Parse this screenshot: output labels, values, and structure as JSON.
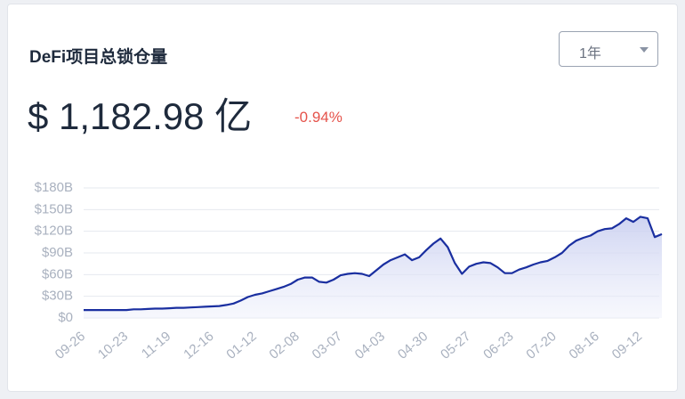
{
  "header": {
    "title": "DeFi项目总锁仓量",
    "value": "$ 1,182.98 亿",
    "change": "-0.94%",
    "period": "1年"
  },
  "chart_data": {
    "type": "area",
    "color": "#1a2fa0",
    "grid": true,
    "categories": [
      "09-26",
      null,
      null,
      null,
      null,
      null,
      "10-23",
      null,
      null,
      null,
      null,
      null,
      "11-19",
      null,
      null,
      null,
      null,
      null,
      "12-16",
      null,
      null,
      null,
      null,
      null,
      "01-12",
      null,
      null,
      null,
      null,
      null,
      "02-08",
      null,
      null,
      null,
      null,
      null,
      "03-07",
      null,
      null,
      null,
      null,
      null,
      "04-03",
      null,
      null,
      null,
      null,
      null,
      "04-30",
      null,
      null,
      null,
      null,
      null,
      "05-27",
      null,
      null,
      null,
      null,
      null,
      "06-23",
      null,
      null,
      null,
      null,
      null,
      "07-20",
      null,
      null,
      null,
      null,
      null,
      "08-16",
      null,
      null,
      null,
      null,
      null,
      "09-12",
      null,
      null,
      null
    ],
    "values": [
      11,
      11,
      11,
      11,
      11,
      11,
      11,
      12,
      12,
      12.5,
      13,
      13,
      13.5,
      14,
      14,
      14.5,
      15,
      15.5,
      16,
      16.5,
      18,
      20,
      24,
      29,
      32,
      34,
      37,
      40,
      43,
      47,
      53,
      56,
      56,
      50,
      49,
      53,
      59,
      61,
      62,
      61,
      58,
      66,
      74,
      80,
      84,
      88,
      80,
      84,
      94,
      103,
      110,
      98,
      76,
      61,
      71,
      75,
      77,
      76,
      70,
      62,
      62,
      67,
      70,
      74,
      77,
      79,
      84,
      90,
      100,
      107,
      111,
      114,
      120,
      123,
      124,
      130,
      138,
      133,
      140,
      138,
      112,
      116
    ],
    "ylim": [
      0,
      180
    ],
    "yticks": [
      {
        "value": 0,
        "label": "$0"
      },
      {
        "value": 30,
        "label": "$30B"
      },
      {
        "value": 60,
        "label": "$60B"
      },
      {
        "value": 90,
        "label": "$90B"
      },
      {
        "value": 120,
        "label": "$120B"
      },
      {
        "value": 150,
        "label": "$150B"
      },
      {
        "value": 180,
        "label": "$180B"
      }
    ]
  }
}
